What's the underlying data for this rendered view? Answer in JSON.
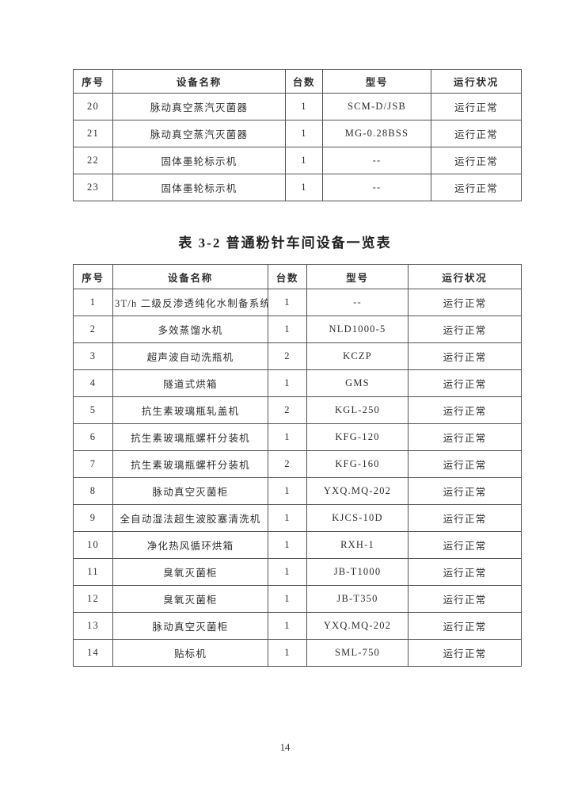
{
  "table1": {
    "headers": [
      "序号",
      "设备名称",
      "台数",
      "型号",
      "运行状况"
    ],
    "rows": [
      [
        "20",
        "脉动真空蒸汽灭菌器",
        "1",
        "SCM-D/JSB",
        "运行正常"
      ],
      [
        "21",
        "脉动真空蒸汽灭菌器",
        "1",
        "MG-0.28BSS",
        "运行正常"
      ],
      [
        "22",
        "固体墨轮标示机",
        "1",
        "--",
        "运行正常"
      ],
      [
        "23",
        "固体墨轮标示机",
        "1",
        "--",
        "运行正常"
      ]
    ]
  },
  "table2": {
    "title": "表 3-2 普通粉针车间设备一览表",
    "headers": [
      "序号",
      "设备名称",
      "台数",
      "型号",
      "运行状况"
    ],
    "rows": [
      [
        "1",
        "3T/h 二级反渗透纯化水制备系统",
        "1",
        "--",
        "运行正常"
      ],
      [
        "2",
        "多效蒸馏水机",
        "1",
        "NLD1000-5",
        "运行正常"
      ],
      [
        "3",
        "超声波自动洗瓶机",
        "2",
        "KCZP",
        "运行正常"
      ],
      [
        "4",
        "隧道式烘箱",
        "1",
        "GMS",
        "运行正常"
      ],
      [
        "5",
        "抗生素玻璃瓶轧盖机",
        "2",
        "KGL-250",
        "运行正常"
      ],
      [
        "6",
        "抗生素玻璃瓶螺杆分装机",
        "1",
        "KFG-120",
        "运行正常"
      ],
      [
        "7",
        "抗生素玻璃瓶螺杆分装机",
        "2",
        "KFG-160",
        "运行正常"
      ],
      [
        "8",
        "脉动真空灭菌柜",
        "1",
        "YXQ.MQ-202",
        "运行正常"
      ],
      [
        "9",
        "全自动湿法超生波胶塞清洗机",
        "1",
        "KJCS-10D",
        "运行正常"
      ],
      [
        "10",
        "净化热风循环烘箱",
        "1",
        "RXH-1",
        "运行正常"
      ],
      [
        "11",
        "臭氧灭菌柜",
        "1",
        "JB-T1000",
        "运行正常"
      ],
      [
        "12",
        "臭氧灭菌柜",
        "1",
        "JB-T350",
        "运行正常"
      ],
      [
        "13",
        "脉动真空灭菌柜",
        "1",
        "YXQ.MQ-202",
        "运行正常"
      ],
      [
        "14",
        "贴标机",
        "1",
        "SML-750",
        "运行正常"
      ]
    ]
  },
  "footer": {
    "page_number": "14"
  }
}
